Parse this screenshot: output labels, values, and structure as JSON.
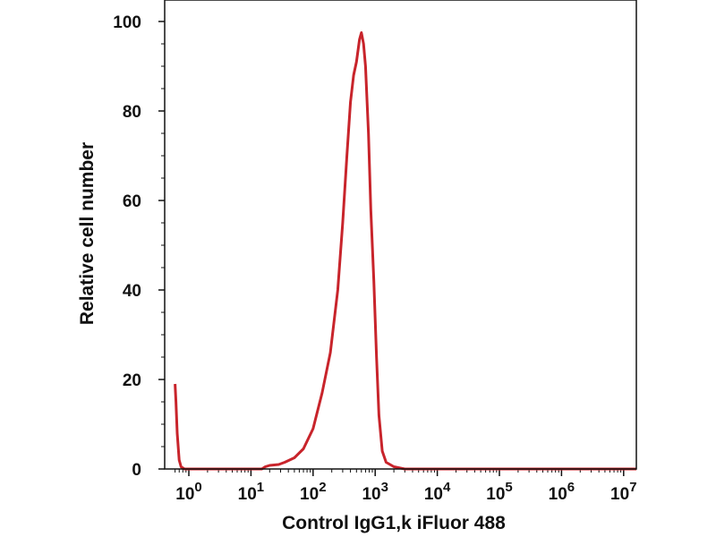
{
  "chart_data": {
    "type": "line",
    "title": "",
    "xlabel": "Control IgG1,k iFluor 488",
    "ylabel": "Relative cell number",
    "x_scale": "log",
    "xlim": [
      0.6,
      20000000
    ],
    "ylim": [
      0,
      100
    ],
    "x_ticks": [
      {
        "value": 1,
        "base": "10",
        "exp": "0"
      },
      {
        "value": 10,
        "base": "10",
        "exp": "1"
      },
      {
        "value": 100,
        "base": "10",
        "exp": "2"
      },
      {
        "value": 1000,
        "base": "10",
        "exp": "3"
      },
      {
        "value": 10000,
        "base": "10",
        "exp": "4"
      },
      {
        "value": 100000,
        "base": "10",
        "exp": "5"
      },
      {
        "value": 1000000,
        "base": "10",
        "exp": "6"
      },
      {
        "value": 10000000,
        "base": "10",
        "exp": "7"
      }
    ],
    "y_ticks": [
      0,
      20,
      40,
      60,
      80,
      100
    ],
    "grid": false,
    "legend": "none",
    "series": [
      {
        "color": "#c8242b",
        "points": [
          [
            0.6,
            19
          ],
          [
            0.62,
            15
          ],
          [
            0.65,
            8
          ],
          [
            0.7,
            2
          ],
          [
            0.75,
            0.5
          ],
          [
            0.85,
            0
          ],
          [
            15,
            0
          ],
          [
            17,
            0.5
          ],
          [
            20,
            0.8
          ],
          [
            28,
            1
          ],
          [
            35,
            1.5
          ],
          [
            50,
            2.5
          ],
          [
            70,
            4.5
          ],
          [
            100,
            9
          ],
          [
            140,
            17
          ],
          [
            190,
            26
          ],
          [
            250,
            40
          ],
          [
            300,
            55
          ],
          [
            350,
            70
          ],
          [
            400,
            82
          ],
          [
            450,
            88
          ],
          [
            500,
            91
          ],
          [
            560,
            96
          ],
          [
            600,
            97.5
          ],
          [
            650,
            95
          ],
          [
            700,
            90
          ],
          [
            780,
            75
          ],
          [
            850,
            58
          ],
          [
            950,
            42
          ],
          [
            1050,
            25
          ],
          [
            1150,
            12
          ],
          [
            1300,
            4
          ],
          [
            1500,
            1.5
          ],
          [
            2000,
            0.5
          ],
          [
            3000,
            0
          ],
          [
            20000000,
            0
          ]
        ]
      }
    ]
  }
}
